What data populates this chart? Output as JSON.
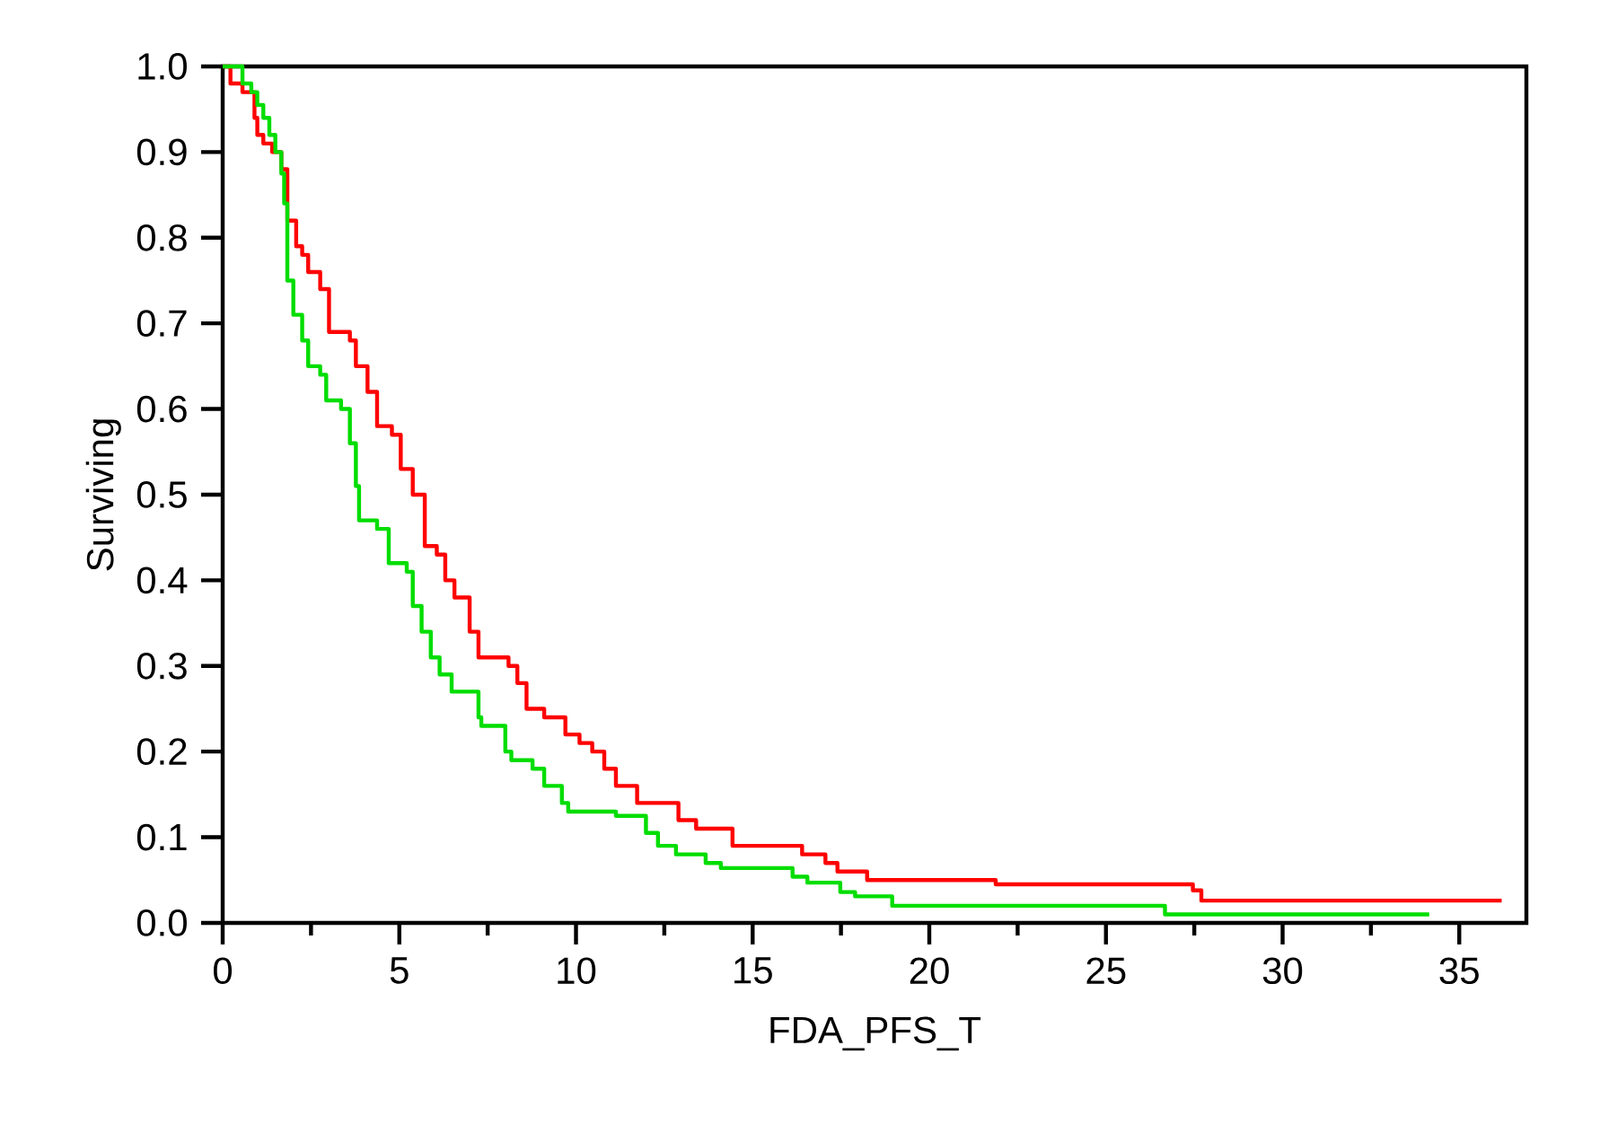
{
  "chart_data": {
    "type": "step",
    "xlabel": "FDA_PFS_T",
    "ylabel": "Surviving",
    "xlim": [
      0,
      36.9
    ],
    "ylim": [
      0,
      1
    ],
    "xticks": [
      0,
      {
        "value": 2.5,
        "label": null
      },
      5,
      {
        "value": 7.5,
        "label": null
      },
      10,
      {
        "value": 12.5,
        "label": null
      },
      15,
      {
        "value": 17.5,
        "label": null
      },
      20,
      {
        "value": 22.5,
        "label": null
      },
      25,
      {
        "value": 27.5,
        "label": null
      },
      30,
      {
        "value": 32.5,
        "label": null
      },
      35
    ],
    "yticks": [
      {
        "value": 0,
        "label": "0.0"
      },
      {
        "value": 0.1,
        "label": "0.1"
      },
      {
        "value": 0.2,
        "label": "0.2"
      },
      {
        "value": 0.3,
        "label": "0.3"
      },
      {
        "value": 0.4,
        "label": "0.4"
      },
      {
        "value": 0.5,
        "label": "0.5"
      },
      {
        "value": 0.6,
        "label": "0.6"
      },
      {
        "value": 0.7,
        "label": "0.7"
      },
      {
        "value": 0.8,
        "label": "0.8"
      },
      {
        "value": 0.9,
        "label": "0.9"
      },
      {
        "value": 1,
        "label": "1.0"
      }
    ],
    "grid": false,
    "marker": "none",
    "line_style": "solid",
    "series": [
      {
        "color": "#ff0000",
        "x": [
          0,
          0.22,
          0.56,
          0.9,
          0.98,
          1.15,
          1.4,
          1.66,
          1.83,
          2.08,
          2.25,
          2.42,
          2.76,
          3.01,
          3.6,
          3.77,
          4.1,
          4.37,
          4.79,
          5.04,
          5.38,
          5.72,
          6.06,
          6.3,
          6.56,
          6.99,
          7.24,
          8.09,
          8.34,
          8.6,
          9.1,
          9.7,
          10.1,
          10.46,
          10.8,
          11.13,
          11.73,
          12.9,
          13.4,
          14.43,
          16.4,
          17.06,
          17.4,
          18.24,
          21.88,
          27.46,
          27.7,
          36.2
        ],
        "values": [
          1.0,
          0.98,
          0.97,
          0.94,
          0.92,
          0.91,
          0.9,
          0.88,
          0.82,
          0.79,
          0.78,
          0.76,
          0.74,
          0.69,
          0.68,
          0.65,
          0.62,
          0.58,
          0.57,
          0.53,
          0.5,
          0.44,
          0.43,
          0.4,
          0.38,
          0.34,
          0.31,
          0.3,
          0.28,
          0.25,
          0.24,
          0.22,
          0.21,
          0.2,
          0.18,
          0.16,
          0.14,
          0.12,
          0.11,
          0.09,
          0.08,
          0.07,
          0.06,
          0.05,
          0.045,
          0.038,
          0.026,
          0.026
        ]
      },
      {
        "color": "#00dd00",
        "x": [
          0,
          0.56,
          0.81,
          0.98,
          1.15,
          1.32,
          1.49,
          1.66,
          1.74,
          1.83,
          2.0,
          2.25,
          2.42,
          2.76,
          2.93,
          3.35,
          3.6,
          3.77,
          3.86,
          4.37,
          4.7,
          5.21,
          5.38,
          5.63,
          5.89,
          6.14,
          6.48,
          7.24,
          7.32,
          8.0,
          8.17,
          8.77,
          9.1,
          9.6,
          9.78,
          11.13,
          11.98,
          12.32,
          12.83,
          13.67,
          14.1,
          16.13,
          16.55,
          17.48,
          17.9,
          18.95,
          26.67,
          34.15
        ],
        "values": [
          1.0,
          0.98,
          0.97,
          0.955,
          0.94,
          0.92,
          0.9,
          0.875,
          0.84,
          0.75,
          0.71,
          0.68,
          0.65,
          0.64,
          0.61,
          0.6,
          0.56,
          0.51,
          0.47,
          0.46,
          0.42,
          0.41,
          0.37,
          0.34,
          0.31,
          0.29,
          0.27,
          0.24,
          0.23,
          0.2,
          0.19,
          0.18,
          0.16,
          0.14,
          0.13,
          0.125,
          0.105,
          0.09,
          0.08,
          0.07,
          0.064,
          0.054,
          0.047,
          0.036,
          0.031,
          0.02,
          0.01,
          0.01
        ]
      }
    ]
  }
}
